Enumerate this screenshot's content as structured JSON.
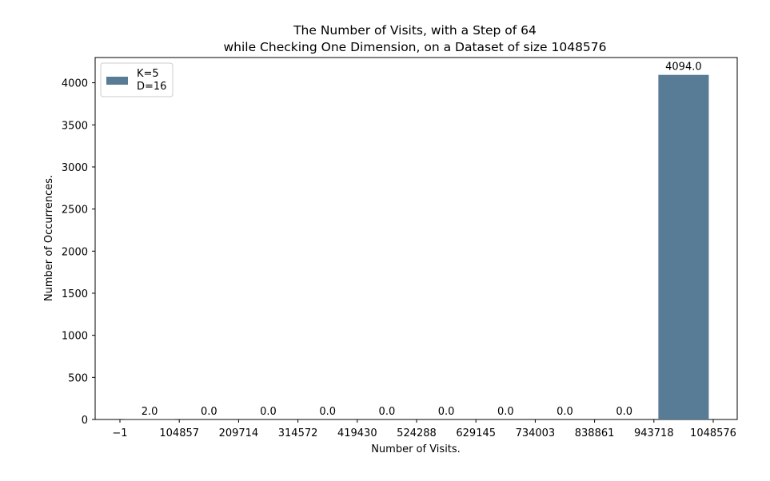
{
  "chart_data": {
    "type": "bar",
    "title": "The Number of Visits, with a Step of 64",
    "subtitle": "while Checking One Dimension, on a Dataset of size 1048576",
    "xlabel": "Number of Visits.",
    "ylabel": "Number of Occurrences.",
    "x_ticks": [
      "−1",
      "104857",
      "209714",
      "314572",
      "419430",
      "524288",
      "629145",
      "734003",
      "838861",
      "943718",
      "1048576"
    ],
    "y_ticks": [
      "0",
      "500",
      "1000",
      "1500",
      "2000",
      "2500",
      "3000",
      "3500",
      "4000"
    ],
    "y_tick_values": [
      0,
      500,
      1000,
      1500,
      2000,
      2500,
      3000,
      3500,
      4000
    ],
    "ylim": [
      0,
      4300
    ],
    "bar_color": "#587b96",
    "legend": {
      "placement": "top-left",
      "lines": [
        "K=5",
        "D=16"
      ]
    },
    "bars": [
      {
        "label": "2.0",
        "value": 2
      },
      {
        "label": "0.0",
        "value": 0
      },
      {
        "label": "0.0",
        "value": 0
      },
      {
        "label": "0.0",
        "value": 0
      },
      {
        "label": "0.0",
        "value": 0
      },
      {
        "label": "0.0",
        "value": 0
      },
      {
        "label": "0.0",
        "value": 0
      },
      {
        "label": "0.0",
        "value": 0
      },
      {
        "label": "0.0",
        "value": 0
      },
      {
        "label": "4094.0",
        "value": 4094
      }
    ]
  }
}
